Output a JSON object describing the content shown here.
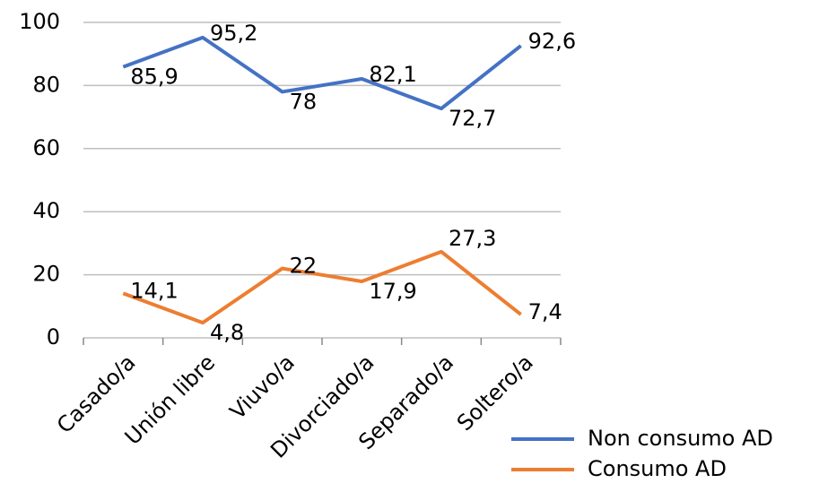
{
  "chart_data": {
    "type": "line",
    "categories": [
      "Casado/a",
      "Unión libre",
      "Viuvo/a",
      "Divorciado/a",
      "Separado/a",
      "Soltero/a"
    ],
    "series": [
      {
        "name": "Non consumo AD",
        "color": "#4472c4",
        "values": [
          85.9,
          95.2,
          78,
          82.1,
          72.7,
          92.6
        ],
        "value_labels": [
          "85,9",
          "95,2",
          "78",
          "82,1",
          "72,7",
          "92,6"
        ]
      },
      {
        "name": "Consumo AD",
        "color": "#ed7d31",
        "values": [
          14.1,
          4.8,
          22,
          17.9,
          27.3,
          7.4
        ],
        "value_labels": [
          "14,1",
          "4,8",
          "22",
          "17,9",
          "27,3",
          "7,4"
        ]
      }
    ],
    "ylim": [
      0,
      100
    ],
    "yticks": [
      0,
      20,
      40,
      60,
      80,
      100
    ],
    "grid": true,
    "legend": "bottom-right"
  }
}
